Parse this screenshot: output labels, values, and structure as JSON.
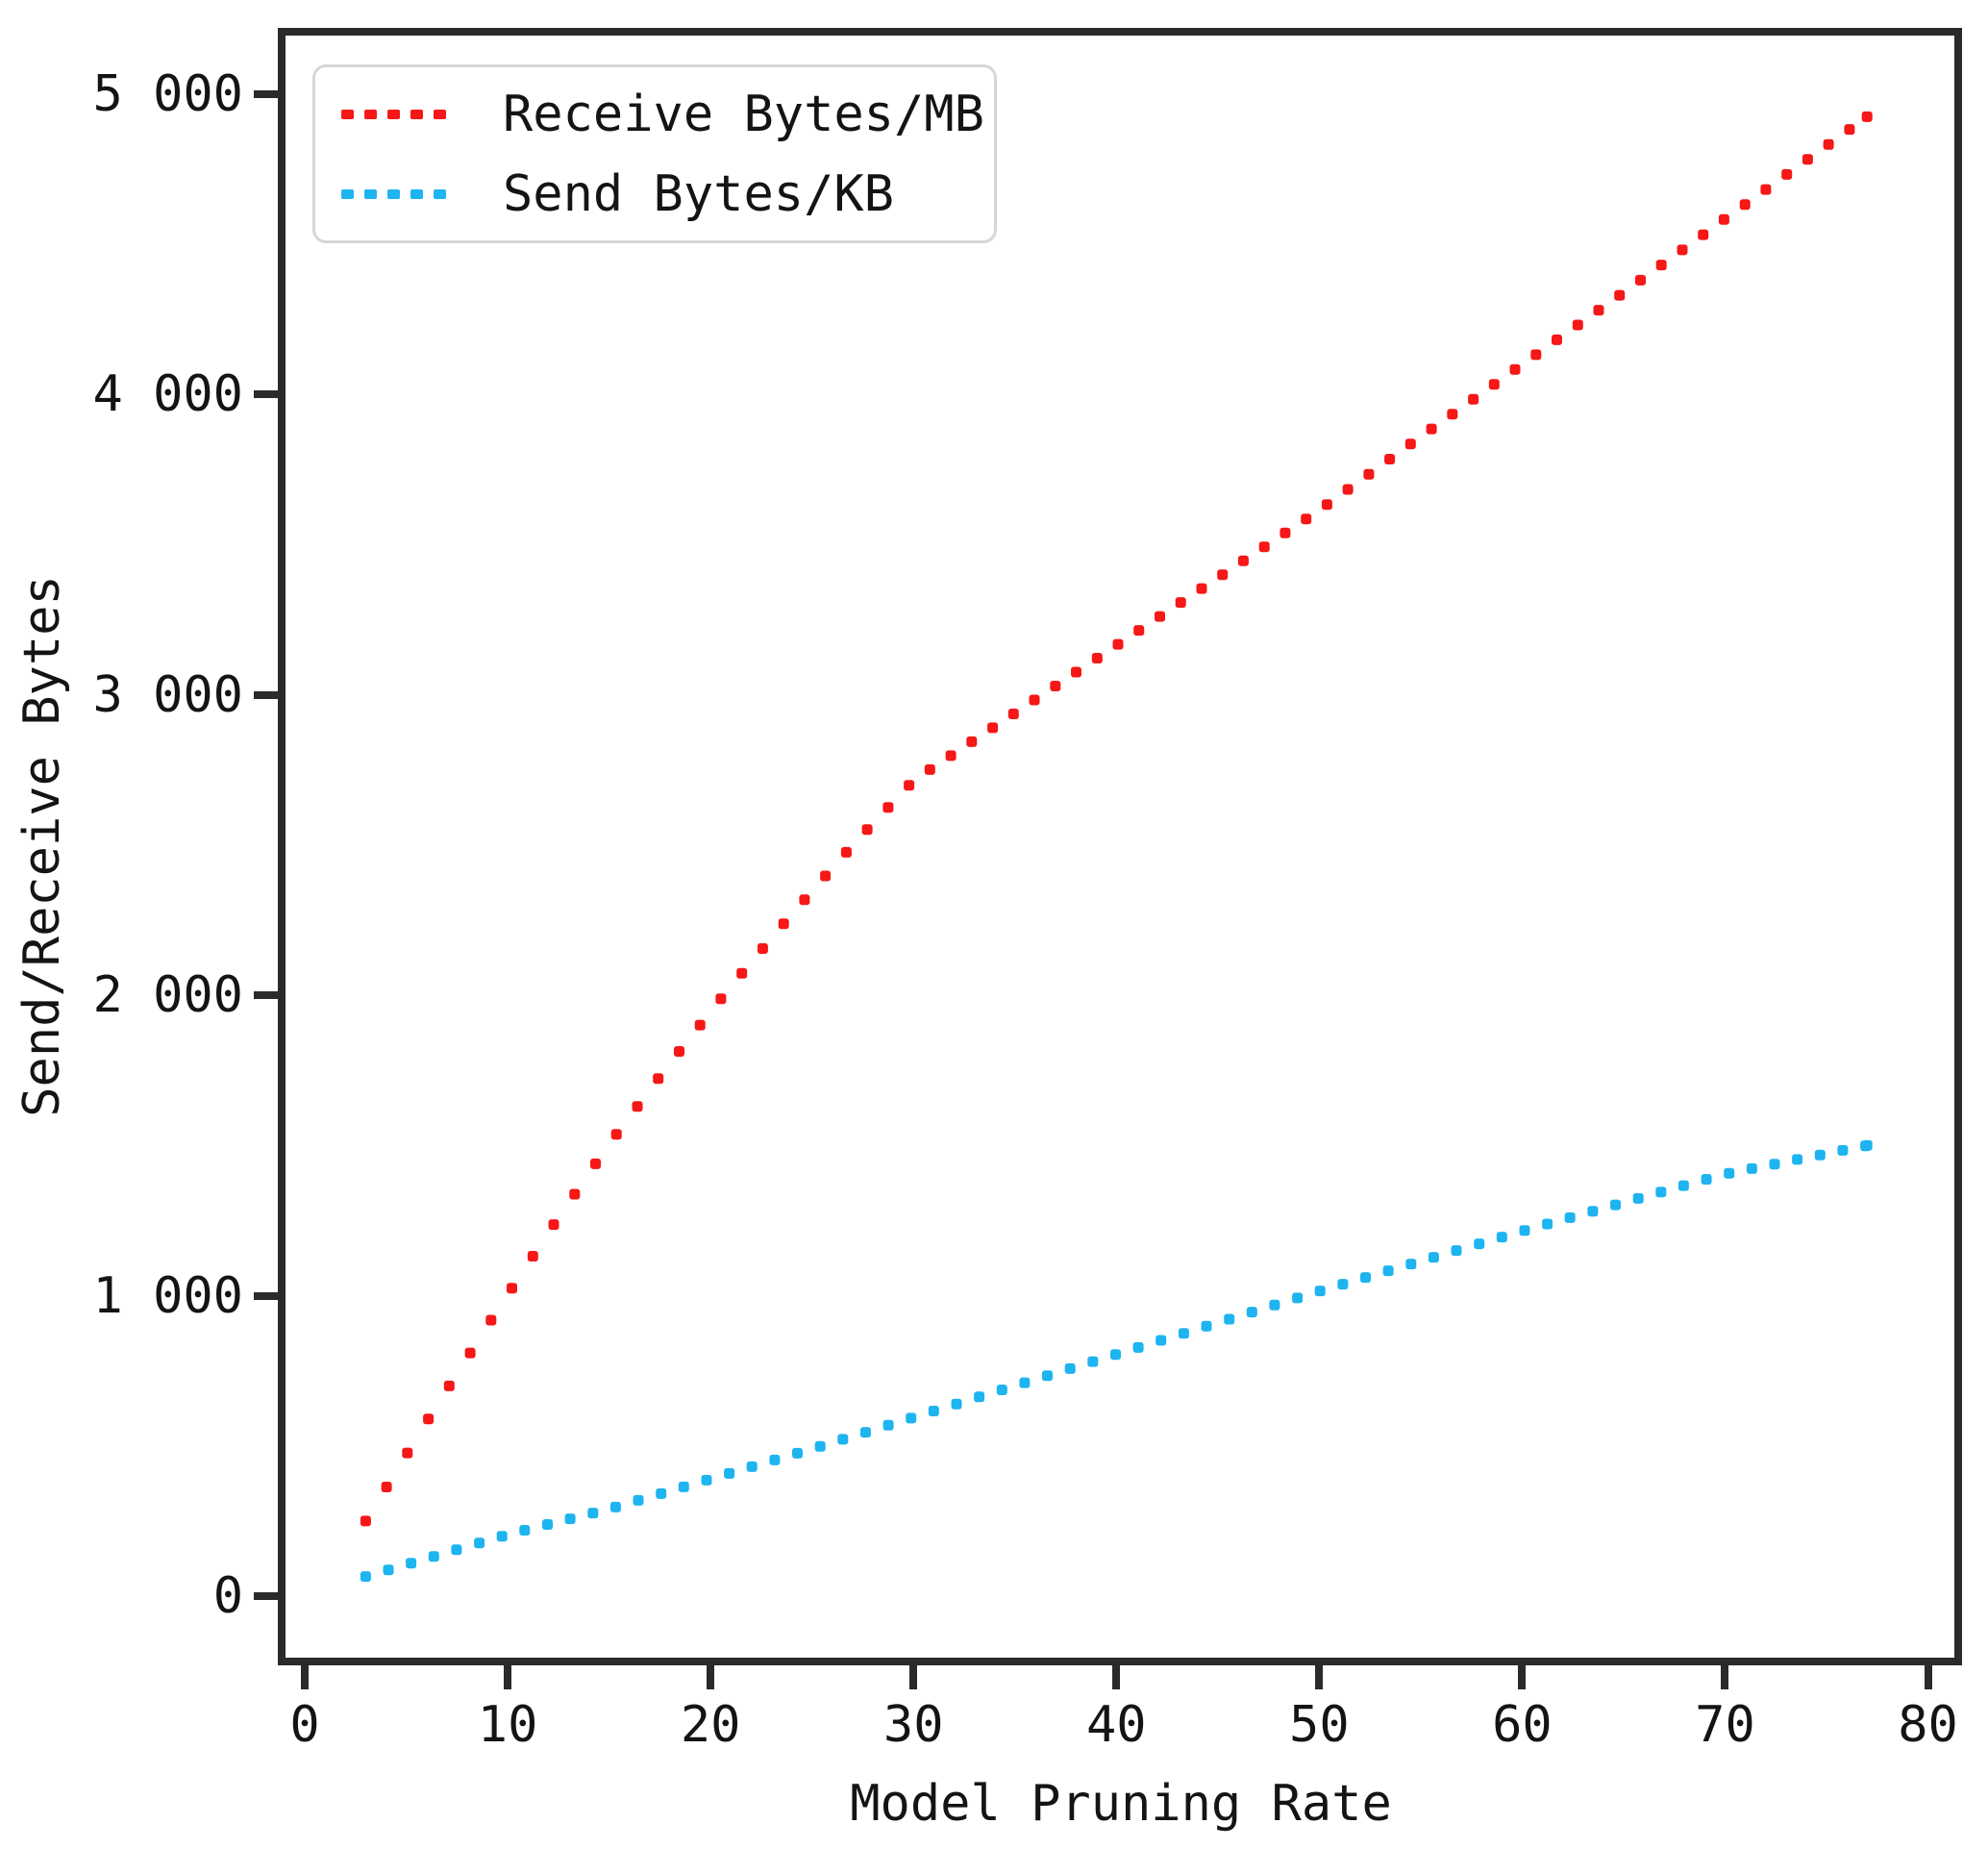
{
  "chart_data": {
    "type": "line",
    "title": "",
    "xlabel": "Model Pruning Rate",
    "ylabel": "Send/Receive Bytes",
    "xlim": [
      -0.95,
      81.3
    ],
    "ylim": [
      -205,
      5195
    ],
    "grid": false,
    "legend_position": "upper-left",
    "x_ticks": [
      {
        "value": 0,
        "label": "0"
      },
      {
        "value": 10,
        "label": "10"
      },
      {
        "value": 20,
        "label": "20"
      },
      {
        "value": 30,
        "label": "30"
      },
      {
        "value": 40,
        "label": "40"
      },
      {
        "value": 50,
        "label": "50"
      },
      {
        "value": 60,
        "label": "60"
      },
      {
        "value": 70,
        "label": "70"
      },
      {
        "value": 80,
        "label": "80"
      }
    ],
    "y_ticks": [
      {
        "value": 0,
        "label": "0"
      },
      {
        "value": 1000,
        "label": "1 000"
      },
      {
        "value": 2000,
        "label": "2 000"
      },
      {
        "value": 3000,
        "label": "3 000"
      },
      {
        "value": 4000,
        "label": "4 000"
      },
      {
        "value": 5000,
        "label": "5 000"
      }
    ],
    "series": [
      {
        "name": "Receive Bytes/MB",
        "color": "#f61717",
        "linestyle": "dotted",
        "dot_step_x": 1.03,
        "points": [
          [
            3,
            250
          ],
          [
            6,
            580
          ],
          [
            9,
            900
          ],
          [
            12,
            1210
          ],
          [
            15,
            1505
          ],
          [
            18,
            1775
          ],
          [
            21,
            2030
          ],
          [
            24,
            2270
          ],
          [
            27,
            2500
          ],
          [
            30,
            2715
          ],
          [
            35,
            2940
          ],
          [
            40,
            3165
          ],
          [
            45,
            3390
          ],
          [
            50,
            3615
          ],
          [
            55,
            3860
          ],
          [
            60,
            4100
          ],
          [
            65,
            4340
          ],
          [
            70,
            4585
          ],
          [
            77,
            4925
          ]
        ]
      },
      {
        "name": "Send Bytes/KB",
        "color": "#1eb4f0",
        "linestyle": "dotted",
        "dot_step_x": 1.12,
        "points": [
          [
            3,
            65
          ],
          [
            10,
            205
          ],
          [
            15,
            290
          ],
          [
            20,
            390
          ],
          [
            25,
            490
          ],
          [
            30,
            595
          ],
          [
            35,
            700
          ],
          [
            40,
            805
          ],
          [
            45,
            910
          ],
          [
            50,
            1015
          ],
          [
            55,
            1115
          ],
          [
            60,
            1215
          ],
          [
            65,
            1310
          ],
          [
            70,
            1405
          ],
          [
            77,
            1500
          ]
        ]
      }
    ]
  }
}
